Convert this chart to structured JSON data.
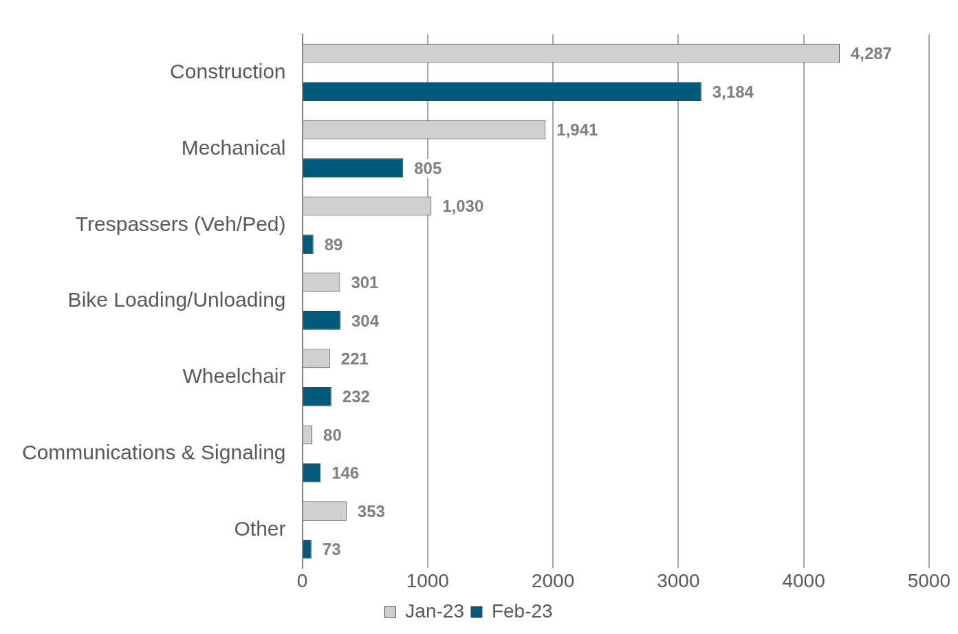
{
  "chart_data": {
    "type": "bar",
    "orientation": "horizontal",
    "categories": [
      "Construction",
      "Mechanical",
      "Trespassers (Veh/Ped)",
      "Bike Loading/Unloading",
      "Wheelchair",
      "Communications & Signaling",
      "Other"
    ],
    "series": [
      {
        "name": "Jan-23",
        "color": "#d0d0d0",
        "values": [
          4287,
          1941,
          1030,
          301,
          221,
          80,
          353
        ],
        "value_labels": [
          "4,287",
          "1,941",
          "1,030",
          "301",
          "221",
          "80",
          "353"
        ]
      },
      {
        "name": "Feb-23",
        "color": "#005a7c",
        "values": [
          3184,
          805,
          89,
          304,
          232,
          146,
          73
        ],
        "value_labels": [
          "3,184",
          "805",
          "89",
          "304",
          "232",
          "146",
          "73"
        ]
      }
    ],
    "xlim": [
      0,
      5000
    ],
    "xticks": [
      0,
      1000,
      2000,
      3000,
      4000,
      5000
    ],
    "grid": "x",
    "legend": "bottom"
  }
}
